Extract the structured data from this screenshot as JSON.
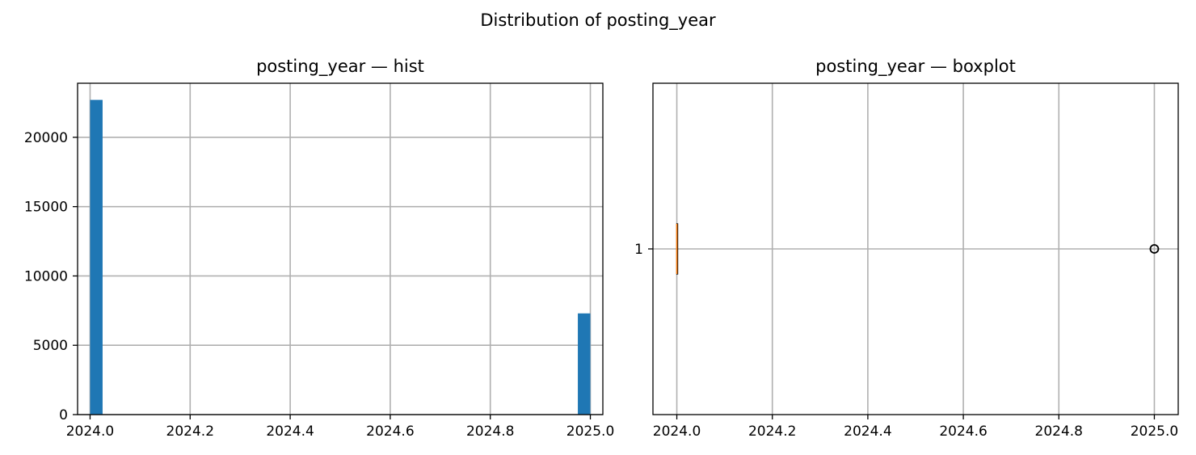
{
  "figure": {
    "suptitle": "Distribution of posting_year"
  },
  "colors": {
    "bar": "#1f77b4",
    "median": "#ff7f0e",
    "grid": "#b0b0b0",
    "axis": "#000000"
  },
  "chart_data": [
    {
      "type": "bar",
      "title": "posting_year — hist",
      "xlabel": "",
      "ylabel": "",
      "xlim": [
        2023.975,
        2025.025
      ],
      "ylim": [
        0,
        23900
      ],
      "grid": true,
      "x_ticks": [
        2024.0,
        2024.2,
        2024.4,
        2024.6,
        2024.8,
        2025.0
      ],
      "x_tick_labels": [
        "2024.0",
        "2024.2",
        "2024.4",
        "2024.6",
        "2024.8",
        "2025.0"
      ],
      "y_ticks": [
        0,
        5000,
        10000,
        15000,
        20000
      ],
      "y_tick_labels": [
        "0",
        "5000",
        "10000",
        "15000",
        "20000"
      ],
      "bin_width": 0.025,
      "bins": [
        {
          "start": 2024.0,
          "end": 2024.025,
          "count": 22700
        },
        {
          "start": 2024.975,
          "end": 2025.0,
          "count": 7300
        }
      ]
    },
    {
      "type": "boxplot",
      "title": "posting_year — boxplot",
      "xlabel": "",
      "ylabel": "",
      "orientation": "horizontal",
      "xlim": [
        2023.95,
        2025.05
      ],
      "ylim": [
        0.5,
        1.5
      ],
      "grid": true,
      "x_ticks": [
        2024.0,
        2024.2,
        2024.4,
        2024.6,
        2024.8,
        2025.0
      ],
      "x_tick_labels": [
        "2024.0",
        "2024.2",
        "2024.4",
        "2024.6",
        "2024.8",
        "2025.0"
      ],
      "y_ticks": [
        1
      ],
      "y_tick_labels": [
        "1"
      ],
      "box": {
        "position": 1,
        "whislo": 2024.0,
        "q1": 2024.0,
        "median": 2024.0,
        "q3": 2024.0,
        "whishi": 2024.0
      },
      "outliers": [
        2025.0
      ]
    }
  ]
}
